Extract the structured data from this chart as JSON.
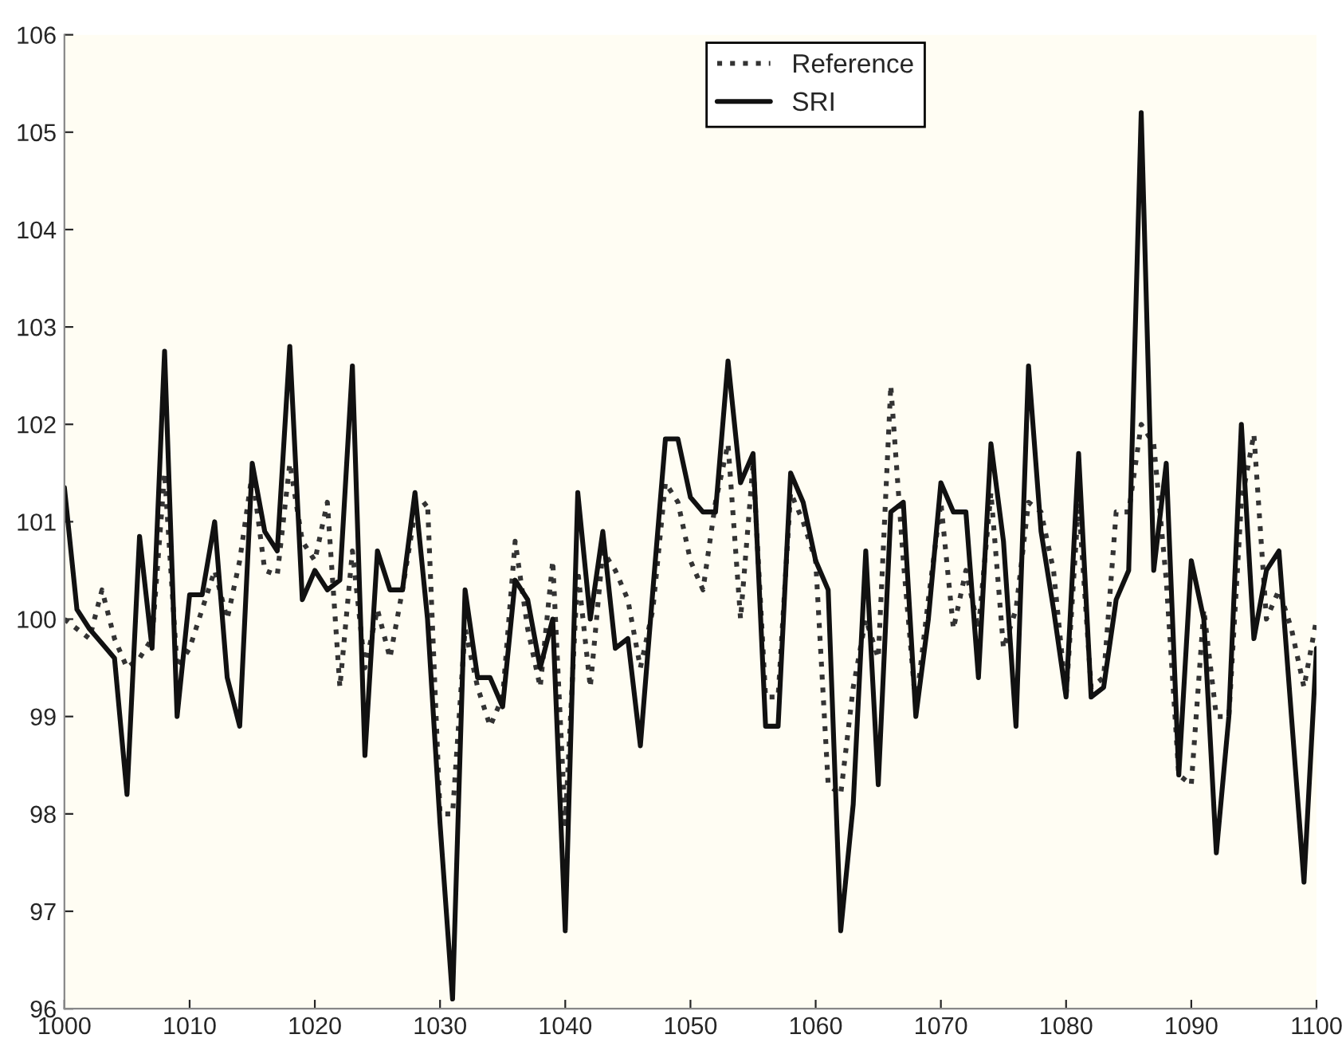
{
  "chart_data": {
    "type": "line",
    "xlim": [
      1000,
      1100
    ],
    "xticks": [
      1000,
      1010,
      1020,
      1030,
      1040,
      1050,
      1060,
      1070,
      1080,
      1090,
      1100
    ],
    "ylim": [
      96,
      106
    ],
    "yticks": [
      96,
      97,
      98,
      99,
      100,
      101,
      102,
      103,
      104,
      105,
      106
    ],
    "grid": false,
    "legend": "top",
    "marker": "none",
    "series": [
      {
        "name": "Reference",
        "color": "#333333",
        "line_style": "dotted",
        "x": [
          1000,
          1001,
          1002,
          1003,
          1004,
          1005,
          1006,
          1007,
          1008,
          1009,
          1010,
          1011,
          1012,
          1013,
          1014,
          1015,
          1016,
          1017,
          1018,
          1019,
          1020,
          1021,
          1022,
          1023,
          1024,
          1025,
          1026,
          1027,
          1028,
          1029,
          1030,
          1031,
          1032,
          1033,
          1034,
          1035,
          1036,
          1037,
          1038,
          1039,
          1040,
          1041,
          1042,
          1043,
          1044,
          1045,
          1046,
          1047,
          1048,
          1049,
          1050,
          1051,
          1052,
          1053,
          1054,
          1055,
          1056,
          1057,
          1058,
          1059,
          1060,
          1061,
          1062,
          1063,
          1064,
          1065,
          1066,
          1067,
          1068,
          1069,
          1070,
          1071,
          1072,
          1073,
          1074,
          1075,
          1076,
          1077,
          1078,
          1079,
          1080,
          1081,
          1082,
          1083,
          1084,
          1085,
          1086,
          1087,
          1088,
          1089,
          1090,
          1091,
          1092,
          1093,
          1094,
          1095,
          1096,
          1097,
          1098,
          1099,
          1100
        ],
        "values": [
          100.0,
          99.9,
          99.8,
          100.3,
          99.8,
          99.5,
          99.6,
          99.8,
          101.5,
          99.5,
          99.7,
          100.1,
          100.5,
          100.0,
          100.6,
          101.5,
          100.5,
          100.45,
          101.6,
          100.8,
          100.6,
          101.2,
          99.3,
          100.7,
          99.5,
          100.1,
          99.6,
          100.3,
          101.1,
          101.2,
          98.0,
          98.0,
          99.9,
          99.3,
          98.9,
          99.2,
          100.8,
          99.9,
          99.3,
          100.6,
          97.9,
          100.5,
          99.3,
          100.7,
          100.5,
          100.2,
          99.5,
          100.1,
          101.4,
          101.2,
          100.6,
          100.3,
          101.2,
          101.8,
          100.0,
          101.6,
          99.2,
          99.2,
          101.3,
          101.0,
          100.6,
          98.3,
          98.2,
          99.3,
          100.0,
          99.6,
          102.4,
          100.6,
          99.1,
          100.2,
          101.2,
          99.9,
          100.5,
          99.9,
          101.3,
          99.7,
          100.1,
          101.2,
          101.1,
          100.5,
          99.2,
          101.2,
          99.3,
          99.4,
          101.1,
          101.1,
          102.0,
          101.8,
          100.4,
          98.4,
          98.3,
          100.1,
          99.0,
          99.0,
          101.2,
          101.9,
          100.0,
          100.3,
          99.9,
          99.3,
          100.0
        ]
      },
      {
        "name": "SRI",
        "color": "#111111",
        "line_style": "solid",
        "x": [
          1000,
          1001,
          1002,
          1003,
          1004,
          1005,
          1006,
          1007,
          1008,
          1009,
          1010,
          1011,
          1012,
          1013,
          1014,
          1015,
          1016,
          1017,
          1018,
          1019,
          1020,
          1021,
          1022,
          1023,
          1024,
          1025,
          1026,
          1027,
          1028,
          1029,
          1030,
          1031,
          1032,
          1033,
          1034,
          1035,
          1036,
          1037,
          1038,
          1039,
          1040,
          1041,
          1042,
          1043,
          1044,
          1045,
          1046,
          1047,
          1048,
          1049,
          1050,
          1051,
          1052,
          1053,
          1054,
          1055,
          1056,
          1057,
          1058,
          1059,
          1060,
          1061,
          1062,
          1063,
          1064,
          1065,
          1066,
          1067,
          1068,
          1069,
          1070,
          1071,
          1072,
          1073,
          1074,
          1075,
          1076,
          1077,
          1078,
          1079,
          1080,
          1081,
          1082,
          1083,
          1084,
          1085,
          1086,
          1087,
          1088,
          1089,
          1090,
          1091,
          1092,
          1093,
          1094,
          1095,
          1096,
          1097,
          1098,
          1099,
          1100
        ],
        "values": [
          101.35,
          100.1,
          99.9,
          99.75,
          99.6,
          98.2,
          100.85,
          99.7,
          102.75,
          99.0,
          100.25,
          100.25,
          101.0,
          99.4,
          98.9,
          101.6,
          100.9,
          100.7,
          102.8,
          100.2,
          100.5,
          100.3,
          100.4,
          102.6,
          98.6,
          100.7,
          100.3,
          100.3,
          101.3,
          100.0,
          97.9,
          96.1,
          100.3,
          99.4,
          99.4,
          99.1,
          100.4,
          100.2,
          99.5,
          100.0,
          96.8,
          101.3,
          100.0,
          100.9,
          99.7,
          99.8,
          98.7,
          100.3,
          101.85,
          101.85,
          101.25,
          101.1,
          101.1,
          102.65,
          101.4,
          101.7,
          98.9,
          98.9,
          101.5,
          101.2,
          100.6,
          100.3,
          96.8,
          98.1,
          100.7,
          98.3,
          101.1,
          101.2,
          99.0,
          100.0,
          101.4,
          101.1,
          101.1,
          99.4,
          101.8,
          100.8,
          98.9,
          102.6,
          100.9,
          100.1,
          99.2,
          101.7,
          99.2,
          99.3,
          100.2,
          100.5,
          105.2,
          100.5,
          101.6,
          98.4,
          100.6,
          100.0,
          97.6,
          99.0,
          102.0,
          99.8,
          100.5,
          100.7,
          99.0,
          97.3,
          99.7
        ]
      }
    ]
  }
}
